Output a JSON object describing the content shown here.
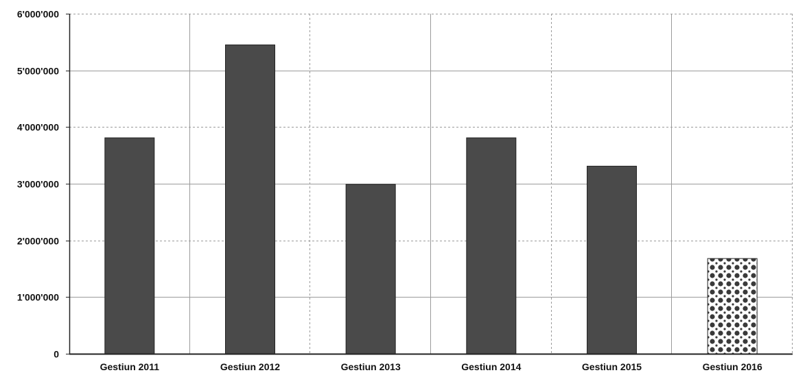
{
  "chart_data": {
    "type": "bar",
    "title": "",
    "xlabel": "",
    "ylabel": "",
    "categories": [
      "Gestiun 2011",
      "Gestiun 2012",
      "Gestiun 2013",
      "Gestiun 2014",
      "Gestiun 2015",
      "Gestiun 2016"
    ],
    "values": [
      3810000,
      5450000,
      2990000,
      3810000,
      3310000,
      1680000
    ],
    "ylim": [
      0,
      6000000
    ],
    "yticks": [
      0,
      1000000,
      2000000,
      3000000,
      4000000,
      5000000,
      6000000
    ],
    "ytick_labels": [
      "0",
      "1'000'000",
      "2'000'000",
      "3'000'000",
      "4'000'000",
      "5'000'000",
      "6'000'000"
    ],
    "grid": true,
    "legend": "none",
    "bar_styles": [
      "solid",
      "solid",
      "solid",
      "solid",
      "solid",
      "dotted-pattern"
    ],
    "colors": {
      "bar": "#4a4a4a",
      "pattern_fill": "#ffffff",
      "pattern_dot": "#3a3a3a",
      "axis": "#222222",
      "grid": "#9a9a9a"
    }
  }
}
